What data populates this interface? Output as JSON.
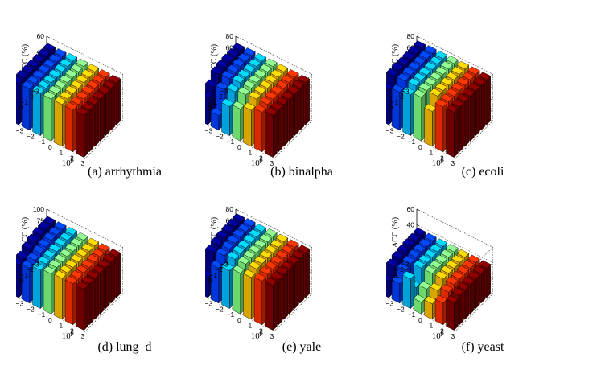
{
  "axis_labels": {
    "y": "ACC (%)",
    "alpha_base": "10",
    "alpha_exp": "α",
    "beta_base": "10",
    "beta_exp": "β",
    "alpha_ticks": [
      "−3",
      "−2",
      "−1",
      "0",
      "1",
      "2",
      "3"
    ],
    "beta_ticks": [
      "−3",
      "−2",
      "−1",
      "0",
      "1",
      "2",
      "3"
    ]
  },
  "colors": [
    "#00008f",
    "#0040ff",
    "#00c0ff",
    "#80ff80",
    "#ffc000",
    "#ff3000",
    "#800000"
  ],
  "chart_data": [
    {
      "type": "bar3d",
      "caption": "(a)  arrhythmia",
      "alpha": [
        -3,
        -2,
        -1,
        0,
        1,
        2,
        3
      ],
      "beta": [
        -3,
        -2,
        -1,
        0,
        1,
        2,
        3
      ],
      "zlim": [
        0,
        60
      ],
      "zticks": [
        "0",
        "20",
        "40",
        "60"
      ],
      "values": [
        [
          53,
          53,
          54,
          54,
          54,
          54,
          54
        ],
        [
          53,
          53,
          54,
          54,
          54,
          54,
          54
        ],
        [
          53,
          53,
          54,
          54,
          54,
          54,
          54
        ],
        [
          53,
          53,
          54,
          54,
          54,
          54,
          54
        ],
        [
          53,
          53,
          54,
          54,
          54,
          54,
          54
        ],
        [
          53,
          53,
          54,
          54,
          54,
          54,
          54
        ],
        [
          53,
          53,
          54,
          54,
          54,
          54,
          54
        ]
      ]
    },
    {
      "type": "bar3d",
      "caption": "(b)  binalpha",
      "alpha": [
        -3,
        -2,
        -1,
        0,
        1,
        2,
        3
      ],
      "beta": [
        -3,
        -2,
        -1,
        0,
        1,
        2,
        3
      ],
      "zlim": [
        0,
        80
      ],
      "zticks": [
        "0",
        "20",
        "40",
        "60",
        "80"
      ],
      "values": [
        [
          71,
          72,
          72,
          72,
          72,
          72,
          72
        ],
        [
          71,
          72,
          72,
          72,
          72,
          72,
          72
        ],
        [
          71,
          72,
          72,
          72,
          72,
          72,
          72
        ],
        [
          70,
          71,
          72,
          72,
          72,
          72,
          72
        ],
        [
          68,
          70,
          72,
          72,
          72,
          72,
          72
        ],
        [
          55,
          60,
          66,
          70,
          72,
          72,
          72
        ],
        [
          45,
          25,
          50,
          55,
          62,
          68,
          72
        ]
      ]
    },
    {
      "type": "bar3d",
      "caption": "(c)  ecoli",
      "alpha": [
        -3,
        -2,
        -1,
        0,
        1,
        2,
        3
      ],
      "beta": [
        -3,
        -2,
        -1,
        0,
        1,
        2,
        3
      ],
      "zlim": [
        0,
        80
      ],
      "zticks": [
        "0",
        "20",
        "40",
        "60",
        "80"
      ],
      "values": [
        [
          75,
          76,
          76,
          77,
          77,
          77,
          77
        ],
        [
          75,
          76,
          76,
          77,
          77,
          77,
          77
        ],
        [
          75,
          76,
          76,
          77,
          77,
          77,
          77
        ],
        [
          75,
          76,
          76,
          77,
          77,
          77,
          77
        ],
        [
          75,
          76,
          76,
          77,
          77,
          77,
          77
        ],
        [
          74,
          75,
          76,
          77,
          77,
          77,
          77
        ],
        [
          60,
          65,
          70,
          75,
          60,
          77,
          77
        ]
      ]
    },
    {
      "type": "bar3d",
      "caption": "(d)  lung_d",
      "alpha": [
        -3,
        -2,
        -1,
        0,
        1,
        2,
        3
      ],
      "beta": [
        -3,
        -2,
        -1,
        0,
        1,
        2,
        3
      ],
      "zlim": [
        0,
        100
      ],
      "zticks": [
        "0",
        "25",
        "50",
        "75",
        "100"
      ],
      "values": [
        [
          88,
          88,
          88,
          88,
          88,
          88,
          88
        ],
        [
          88,
          88,
          88,
          88,
          88,
          88,
          88
        ],
        [
          88,
          88,
          88,
          88,
          88,
          88,
          88
        ],
        [
          85,
          86,
          87,
          88,
          88,
          88,
          88
        ],
        [
          80,
          84,
          86,
          88,
          88,
          88,
          88
        ],
        [
          72,
          80,
          84,
          88,
          88,
          88,
          88
        ],
        [
          70,
          75,
          82,
          86,
          88,
          88,
          88
        ]
      ]
    },
    {
      "type": "bar3d",
      "caption": "(e)  yale",
      "alpha": [
        -3,
        -2,
        -1,
        0,
        1,
        2,
        3
      ],
      "beta": [
        -3,
        -2,
        -1,
        0,
        1,
        2,
        3
      ],
      "zlim": [
        0,
        80
      ],
      "zticks": [
        "0",
        "20",
        "40",
        "60",
        "80"
      ],
      "values": [
        [
          75,
          76,
          76,
          77,
          77,
          77,
          77
        ],
        [
          75,
          76,
          76,
          77,
          77,
          77,
          77
        ],
        [
          75,
          76,
          76,
          77,
          77,
          77,
          77
        ],
        [
          74,
          75,
          76,
          77,
          77,
          77,
          77
        ],
        [
          72,
          74,
          76,
          77,
          77,
          77,
          77
        ],
        [
          68,
          72,
          75,
          76,
          77,
          77,
          77
        ],
        [
          35,
          60,
          65,
          70,
          72,
          75,
          77
        ]
      ]
    },
    {
      "type": "bar3d",
      "caption": "(f)  yeast",
      "alpha": [
        -3,
        -2,
        -1,
        0,
        1,
        2,
        3
      ],
      "beta": [
        -3,
        -2,
        -1,
        0,
        1,
        2,
        3
      ],
      "zlim": [
        0,
        60
      ],
      "zticks": [
        "0",
        "20",
        "40",
        "60"
      ],
      "values": [
        [
          38,
          38,
          38,
          38,
          38,
          38,
          38
        ],
        [
          38,
          38,
          38,
          38,
          38,
          38,
          38
        ],
        [
          38,
          38,
          38,
          38,
          38,
          38,
          38
        ],
        [
          37,
          38,
          38,
          38,
          38,
          38,
          38
        ],
        [
          36,
          37,
          38,
          38,
          38,
          38,
          38
        ],
        [
          33,
          35,
          20,
          25,
          30,
          35,
          38
        ],
        [
          20,
          25,
          38,
          15,
          20,
          28,
          35
        ]
      ]
    }
  ]
}
